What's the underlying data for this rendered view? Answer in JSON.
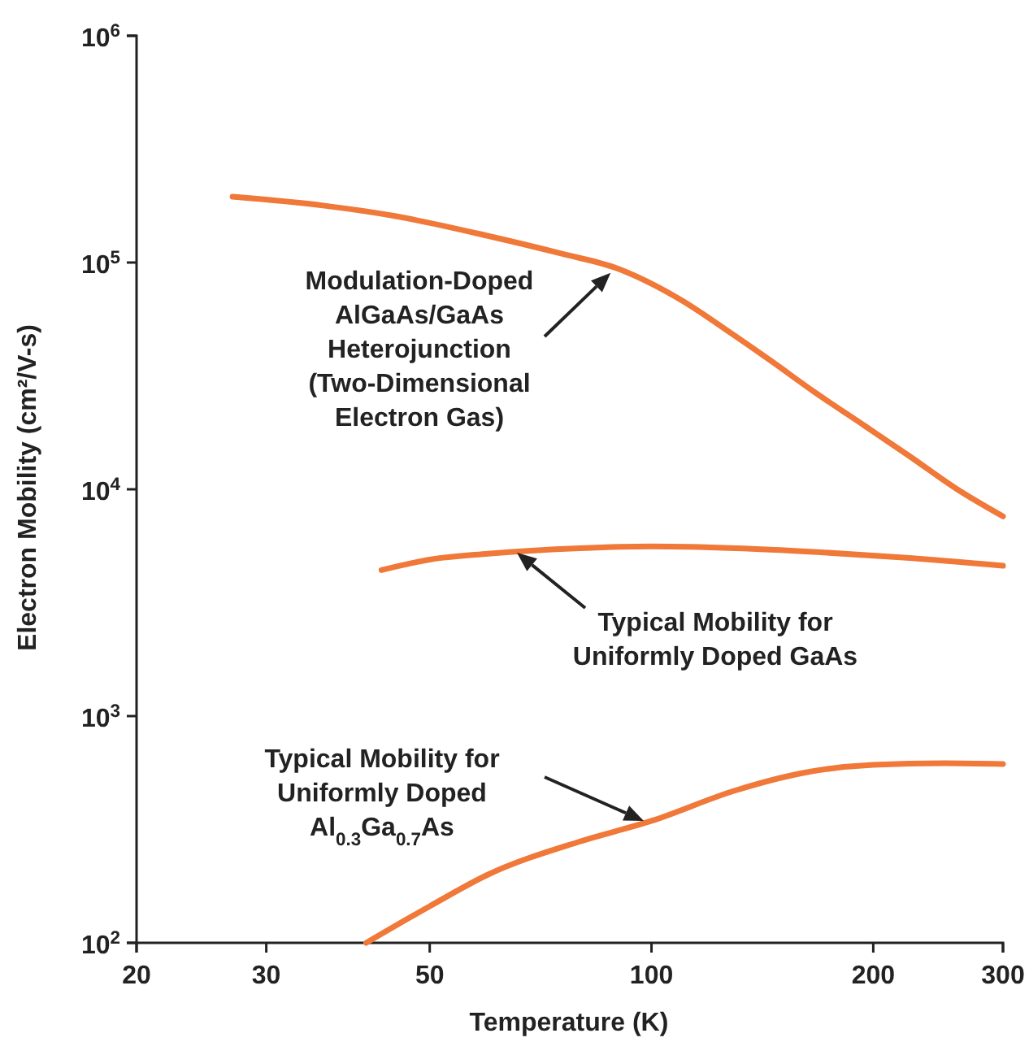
{
  "chart_data": {
    "type": "line",
    "xlabel": "Temperature (K)",
    "ylabel": "Electron Mobility (cm²/V-s)",
    "log": "xy",
    "xlim": [
      20,
      300
    ],
    "ylim": [
      100,
      1000000
    ],
    "xticks": [
      20,
      30,
      50,
      100,
      200,
      300
    ],
    "yticks": [
      {
        "value": 100,
        "label": "10$^{2}$"
      },
      {
        "value": 1000,
        "label": "10$^{3}$"
      },
      {
        "value": 10000,
        "label": "10$^{4}$"
      },
      {
        "value": 100000,
        "label": "10$^{5}$"
      },
      {
        "value": 1000000,
        "label": "10$^{6}$"
      }
    ],
    "grid": false,
    "marker": "none",
    "line_style": "solid",
    "series": [
      {
        "color": "#f07838",
        "x": [
          27,
          36,
          45,
          60,
          75,
          90,
          110,
          128,
          145,
          166,
          195,
          224,
          260,
          300
        ],
        "values": [
          195000,
          178000,
          160000,
          131000,
          110000,
          94000,
          68000,
          49000,
          37000,
          27000,
          19000,
          14000,
          10000,
          7600
        ]
      },
      {
        "color": "#f07838",
        "x": [
          43,
          50,
          60,
          80,
          100,
          130,
          166,
          220,
          300
        ],
        "values": [
          4400,
          4900,
          5200,
          5500,
          5600,
          5500,
          5300,
          5000,
          4600
        ]
      },
      {
        "color": "#f07838",
        "x": [
          41,
          50,
          60,
          80,
          100,
          130,
          160,
          200,
          250,
          300
        ],
        "values": [
          100,
          145,
          200,
          280,
          345,
          470,
          560,
          610,
          620,
          615
        ]
      }
    ],
    "annotations": [
      {
        "text": "Modulation-Doped\nAlGaAs/GaAs\nHeterojunction\n(Two-Dimensional\nElectron Gas)",
        "x": 88,
        "y": 90000
      },
      "Typical Mobility for\nUniformly Doped GaAs",
      "Typical Mobility for\nUniformly Doped\nAl$_{0.3}$Ga$_{0.7}$As"
    ]
  }
}
